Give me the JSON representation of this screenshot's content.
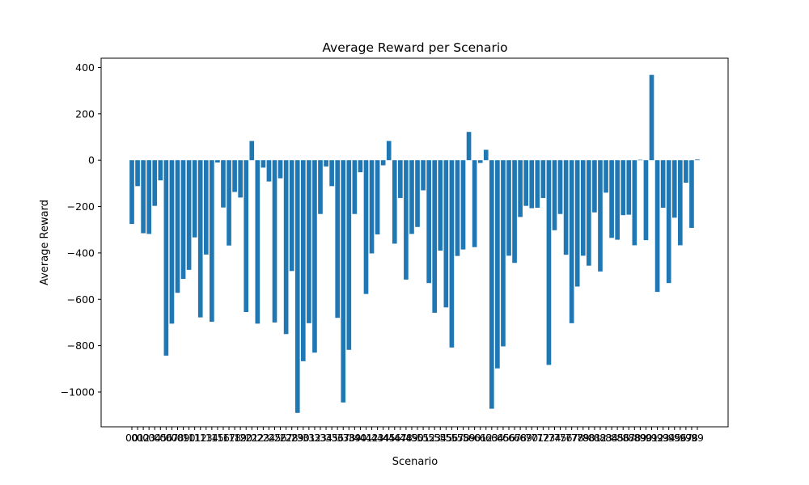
{
  "chart_data": {
    "type": "bar",
    "title": "Average Reward per Scenario",
    "xlabel": "Scenario",
    "ylabel": "Average Reward",
    "ylim": [
      -1150,
      440
    ],
    "yticks": [
      400,
      200,
      0,
      -200,
      -400,
      -600,
      -800,
      -1000
    ],
    "bar_color": "#1f77b4",
    "grid": false,
    "categories": [
      "00",
      "01",
      "02",
      "03",
      "04",
      "05",
      "06",
      "07",
      "08",
      "09",
      "10",
      "11",
      "12",
      "13",
      "14",
      "15",
      "16",
      "17",
      "18",
      "19",
      "20",
      "21",
      "22",
      "23",
      "24",
      "25",
      "26",
      "27",
      "28",
      "29",
      "30",
      "31",
      "32",
      "33",
      "34",
      "35",
      "36",
      "37",
      "38",
      "39",
      "40",
      "41",
      "42",
      "43",
      "44",
      "45",
      "46",
      "47",
      "48",
      "49",
      "50",
      "51",
      "52",
      "53",
      "54",
      "55",
      "56",
      "57",
      "58",
      "59",
      "60",
      "61",
      "62",
      "63",
      "64",
      "65",
      "66",
      "67",
      "68",
      "69",
      "70",
      "71",
      "72",
      "73",
      "74",
      "75",
      "76",
      "77",
      "78",
      "79",
      "80",
      "81",
      "82",
      "83",
      "84",
      "85",
      "86",
      "87",
      "88",
      "89",
      "90",
      "91",
      "92",
      "93",
      "94",
      "95",
      "96",
      "97",
      "98",
      "99"
    ],
    "values": [
      -275,
      -112,
      -315,
      -318,
      -197,
      -87,
      -843,
      -705,
      -572,
      -512,
      -473,
      -333,
      -678,
      -407,
      -697,
      -10,
      -204,
      -368,
      -137,
      -161,
      -655,
      83,
      -705,
      -32,
      -92,
      -700,
      -78,
      -750,
      -478,
      -1090,
      -867,
      -703,
      -830,
      -232,
      -27,
      -112,
      -680,
      -1045,
      -818,
      -232,
      -52,
      -577,
      -402,
      -320,
      -22,
      83,
      -360,
      -163,
      -515,
      -318,
      -288,
      -130,
      -530,
      -658,
      -390,
      -635,
      -808,
      -413,
      -385,
      122,
      -375,
      -12,
      45,
      -1072,
      -898,
      -803,
      -412,
      -443,
      -245,
      -197,
      -207,
      -205,
      -163,
      -883,
      -302,
      -232,
      -408,
      -703,
      -545,
      -412,
      -455,
      -225,
      -480,
      -140,
      -335,
      -343,
      -237,
      -235,
      -367,
      2,
      -345,
      368,
      -568,
      -205,
      -530,
      -248,
      -367,
      -97,
      -292,
      3
    ]
  }
}
